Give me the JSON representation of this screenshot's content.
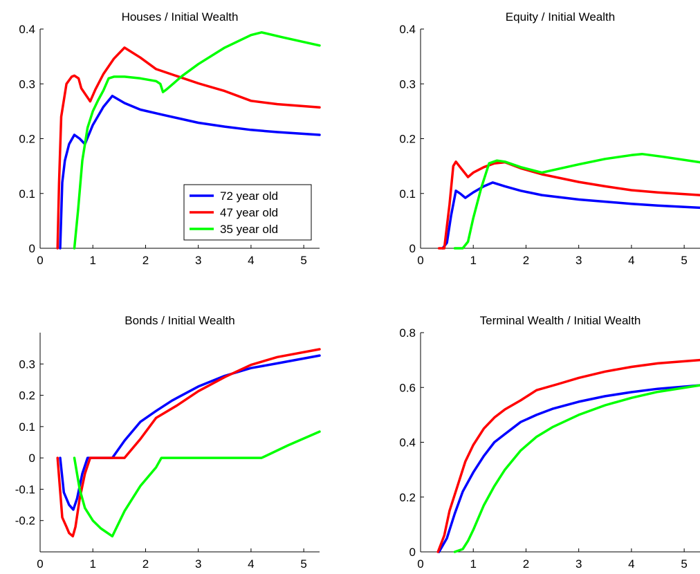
{
  "chart_data": [
    {
      "type": "line",
      "title": "Houses / Initial Wealth",
      "xlabel": "",
      "ylabel": "",
      "xlim": [
        0,
        5.3
      ],
      "ylim": [
        0,
        0.4
      ],
      "xticks": [
        0,
        1,
        2,
        3,
        4,
        5
      ],
      "yticks": [
        0,
        0.1,
        0.2,
        0.3,
        0.4
      ],
      "xtick_labels": [
        "0",
        "1",
        "2",
        "3",
        "4",
        "5"
      ],
      "ytick_labels": [
        "0",
        "0.1",
        "0.2",
        "0.3",
        "0.4"
      ],
      "legend": {
        "position": "lower-right",
        "entries": [
          "72 year old",
          "47 year old",
          "35 year old"
        ]
      },
      "series": [
        {
          "name": "72 year old",
          "color": "#0000ff",
          "points": [
            [
              0.38,
              0
            ],
            [
              0.42,
              0.12
            ],
            [
              0.47,
              0.16
            ],
            [
              0.55,
              0.19
            ],
            [
              0.65,
              0.207
            ],
            [
              0.75,
              0.2
            ],
            [
              0.85,
              0.19
            ],
            [
              1.0,
              0.225
            ],
            [
              1.2,
              0.258
            ],
            [
              1.37,
              0.278
            ],
            [
              1.6,
              0.265
            ],
            [
              1.9,
              0.253
            ],
            [
              2.3,
              0.244
            ],
            [
              3.0,
              0.229
            ],
            [
              3.5,
              0.222
            ],
            [
              4.0,
              0.216
            ],
            [
              4.5,
              0.212
            ],
            [
              5.3,
              0.207
            ]
          ]
        },
        {
          "name": "47 year old",
          "color": "#ff0000",
          "points": [
            [
              0.33,
              0
            ],
            [
              0.36,
              0.12
            ],
            [
              0.4,
              0.24
            ],
            [
              0.5,
              0.3
            ],
            [
              0.6,
              0.313
            ],
            [
              0.65,
              0.315
            ],
            [
              0.73,
              0.31
            ],
            [
              0.78,
              0.292
            ],
            [
              0.95,
              0.268
            ],
            [
              1.05,
              0.29
            ],
            [
              1.2,
              0.318
            ],
            [
              1.4,
              0.346
            ],
            [
              1.6,
              0.366
            ],
            [
              1.9,
              0.348
            ],
            [
              2.2,
              0.327
            ],
            [
              2.6,
              0.314
            ],
            [
              3.0,
              0.301
            ],
            [
              3.5,
              0.287
            ],
            [
              4.0,
              0.269
            ],
            [
              4.5,
              0.263
            ],
            [
              5.3,
              0.257
            ]
          ]
        },
        {
          "name": "35 year old",
          "color": "#00ff00",
          "points": [
            [
              0.65,
              0
            ],
            [
              0.72,
              0.07
            ],
            [
              0.8,
              0.16
            ],
            [
              0.9,
              0.22
            ],
            [
              1.0,
              0.25
            ],
            [
              1.1,
              0.27
            ],
            [
              1.2,
              0.288
            ],
            [
              1.3,
              0.31
            ],
            [
              1.4,
              0.313
            ],
            [
              1.6,
              0.313
            ],
            [
              1.9,
              0.31
            ],
            [
              2.2,
              0.305
            ],
            [
              2.28,
              0.3
            ],
            [
              2.33,
              0.285
            ],
            [
              2.4,
              0.29
            ],
            [
              2.7,
              0.315
            ],
            [
              3.0,
              0.336
            ],
            [
              3.5,
              0.366
            ],
            [
              4.0,
              0.389
            ],
            [
              4.2,
              0.394
            ],
            [
              4.6,
              0.385
            ],
            [
              5.3,
              0.37
            ]
          ]
        }
      ]
    },
    {
      "type": "line",
      "title": "Equity / Initial Wealth",
      "xlabel": "",
      "ylabel": "",
      "xlim": [
        0,
        5.3
      ],
      "ylim": [
        0,
        0.4
      ],
      "xticks": [
        0,
        1,
        2,
        3,
        4,
        5
      ],
      "yticks": [
        0,
        0.1,
        0.2,
        0.3,
        0.4
      ],
      "xtick_labels": [
        "0",
        "1",
        "2",
        "3",
        "4",
        "5"
      ],
      "ytick_labels": [
        "0",
        "0.1",
        "0.2",
        "0.3",
        "0.4"
      ],
      "series": [
        {
          "name": "72 year old",
          "color": "#0000ff",
          "points": [
            [
              0.42,
              0
            ],
            [
              0.5,
              0.01
            ],
            [
              0.58,
              0.06
            ],
            [
              0.67,
              0.105
            ],
            [
              0.75,
              0.1
            ],
            [
              0.85,
              0.092
            ],
            [
              1.0,
              0.102
            ],
            [
              1.2,
              0.113
            ],
            [
              1.37,
              0.12
            ],
            [
              1.6,
              0.113
            ],
            [
              1.9,
              0.105
            ],
            [
              2.3,
              0.097
            ],
            [
              3.0,
              0.089
            ],
            [
              3.5,
              0.085
            ],
            [
              4.0,
              0.081
            ],
            [
              4.5,
              0.078
            ],
            [
              5.3,
              0.074
            ]
          ]
        },
        {
          "name": "47 year old",
          "color": "#ff0000",
          "points": [
            [
              0.35,
              0
            ],
            [
              0.45,
              0
            ],
            [
              0.55,
              0.08
            ],
            [
              0.62,
              0.15
            ],
            [
              0.67,
              0.158
            ],
            [
              0.75,
              0.148
            ],
            [
              0.9,
              0.13
            ],
            [
              1.0,
              0.138
            ],
            [
              1.2,
              0.148
            ],
            [
              1.4,
              0.155
            ],
            [
              1.6,
              0.157
            ],
            [
              1.9,
              0.146
            ],
            [
              2.3,
              0.135
            ],
            [
              3.0,
              0.121
            ],
            [
              3.5,
              0.113
            ],
            [
              4.0,
              0.106
            ],
            [
              4.5,
              0.102
            ],
            [
              5.3,
              0.097
            ]
          ]
        },
        {
          "name": "35 year old",
          "color": "#00ff00",
          "points": [
            [
              0.65,
              0
            ],
            [
              0.8,
              0
            ],
            [
              0.9,
              0.012
            ],
            [
              1.0,
              0.055
            ],
            [
              1.15,
              0.11
            ],
            [
              1.3,
              0.155
            ],
            [
              1.45,
              0.16
            ],
            [
              1.6,
              0.158
            ],
            [
              1.9,
              0.148
            ],
            [
              2.3,
              0.138
            ],
            [
              3.0,
              0.153
            ],
            [
              3.5,
              0.163
            ],
            [
              4.0,
              0.17
            ],
            [
              4.2,
              0.172
            ],
            [
              4.6,
              0.167
            ],
            [
              5.3,
              0.157
            ]
          ]
        }
      ]
    },
    {
      "type": "line",
      "title": "Bonds / Initial Wealth",
      "xlabel": "",
      "ylabel": "",
      "xlim": [
        0,
        5.3
      ],
      "ylim": [
        -0.3,
        0.4
      ],
      "xticks": [
        0,
        1,
        2,
        3,
        4,
        5
      ],
      "yticks": [
        -0.2,
        -0.1,
        0,
        0.1,
        0.2,
        0.3
      ],
      "xtick_labels": [
        "0",
        "1",
        "2",
        "3",
        "4",
        "5"
      ],
      "ytick_labels": [
        "-0.2",
        "-0.1",
        "0",
        "0.1",
        "0.2",
        "0.3"
      ],
      "series": [
        {
          "name": "72 year old",
          "color": "#0000ff",
          "points": [
            [
              0.38,
              0
            ],
            [
              0.45,
              -0.11
            ],
            [
              0.55,
              -0.15
            ],
            [
              0.63,
              -0.165
            ],
            [
              0.7,
              -0.13
            ],
            [
              0.8,
              -0.05
            ],
            [
              0.9,
              0
            ],
            [
              1.37,
              0
            ],
            [
              1.6,
              0.055
            ],
            [
              1.9,
              0.115
            ],
            [
              2.2,
              0.15
            ],
            [
              2.5,
              0.183
            ],
            [
              3.0,
              0.228
            ],
            [
              3.5,
              0.262
            ],
            [
              4.0,
              0.287
            ],
            [
              4.5,
              0.302
            ],
            [
              5.3,
              0.327
            ]
          ]
        },
        {
          "name": "47 year old",
          "color": "#ff0000",
          "points": [
            [
              0.33,
              0
            ],
            [
              0.42,
              -0.19
            ],
            [
              0.5,
              -0.22
            ],
            [
              0.55,
              -0.24
            ],
            [
              0.62,
              -0.25
            ],
            [
              0.67,
              -0.22
            ],
            [
              0.75,
              -0.13
            ],
            [
              0.85,
              -0.05
            ],
            [
              0.95,
              0
            ],
            [
              1.6,
              0
            ],
            [
              1.9,
              0.06
            ],
            [
              2.2,
              0.128
            ],
            [
              2.6,
              0.168
            ],
            [
              3.0,
              0.213
            ],
            [
              3.5,
              0.258
            ],
            [
              4.0,
              0.297
            ],
            [
              4.5,
              0.322
            ],
            [
              5.3,
              0.347
            ]
          ]
        },
        {
          "name": "35 year old",
          "color": "#00ff00",
          "points": [
            [
              0.65,
              0
            ],
            [
              0.75,
              -0.1
            ],
            [
              0.85,
              -0.16
            ],
            [
              1.0,
              -0.2
            ],
            [
              1.15,
              -0.225
            ],
            [
              1.37,
              -0.25
            ],
            [
              1.6,
              -0.17
            ],
            [
              1.9,
              -0.09
            ],
            [
              2.2,
              -0.03
            ],
            [
              2.3,
              0
            ],
            [
              4.2,
              0
            ],
            [
              4.7,
              0.04
            ],
            [
              5.3,
              0.084
            ]
          ]
        }
      ]
    },
    {
      "type": "line",
      "title": "Terminal Wealth / Initial Wealth",
      "xlabel": "",
      "ylabel": "",
      "xlim": [
        0,
        5.3
      ],
      "ylim": [
        0,
        0.8
      ],
      "xticks": [
        0,
        1,
        2,
        3,
        4,
        5
      ],
      "yticks": [
        0,
        0.2,
        0.4,
        0.6,
        0.8
      ],
      "xtick_labels": [
        "0",
        "1",
        "2",
        "3",
        "4",
        "5"
      ],
      "ytick_labels": [
        "0",
        "0.2",
        "0.4",
        "0.6",
        "0.8"
      ],
      "series": [
        {
          "name": "72 year old",
          "color": "#0000ff",
          "points": [
            [
              0.35,
              0
            ],
            [
              0.5,
              0.05
            ],
            [
              0.65,
              0.14
            ],
            [
              0.8,
              0.22
            ],
            [
              1.0,
              0.29
            ],
            [
              1.2,
              0.35
            ],
            [
              1.4,
              0.4
            ],
            [
              1.6,
              0.43
            ],
            [
              1.9,
              0.474
            ],
            [
              2.2,
              0.5
            ],
            [
              2.5,
              0.522
            ],
            [
              3.0,
              0.548
            ],
            [
              3.5,
              0.568
            ],
            [
              4.0,
              0.583
            ],
            [
              4.5,
              0.595
            ],
            [
              5.3,
              0.608
            ]
          ]
        },
        {
          "name": "47 year old",
          "color": "#ff0000",
          "points": [
            [
              0.33,
              0
            ],
            [
              0.45,
              0.06
            ],
            [
              0.55,
              0.15
            ],
            [
              0.7,
              0.24
            ],
            [
              0.85,
              0.33
            ],
            [
              1.0,
              0.39
            ],
            [
              1.2,
              0.45
            ],
            [
              1.4,
              0.49
            ],
            [
              1.6,
              0.52
            ],
            [
              1.9,
              0.553
            ],
            [
              2.2,
              0.59
            ],
            [
              2.6,
              0.612
            ],
            [
              3.0,
              0.635
            ],
            [
              3.5,
              0.658
            ],
            [
              4.0,
              0.675
            ],
            [
              4.5,
              0.688
            ],
            [
              5.3,
              0.7
            ]
          ]
        },
        {
          "name": "35 year old",
          "color": "#00ff00",
          "points": [
            [
              0.65,
              0
            ],
            [
              0.8,
              0.01
            ],
            [
              0.9,
              0.04
            ],
            [
              1.0,
              0.08
            ],
            [
              1.2,
              0.17
            ],
            [
              1.4,
              0.24
            ],
            [
              1.6,
              0.3
            ],
            [
              1.9,
              0.37
            ],
            [
              2.2,
              0.42
            ],
            [
              2.5,
              0.455
            ],
            [
              3.0,
              0.5
            ],
            [
              3.5,
              0.535
            ],
            [
              4.0,
              0.562
            ],
            [
              4.5,
              0.584
            ],
            [
              5.3,
              0.608
            ]
          ]
        }
      ]
    }
  ]
}
